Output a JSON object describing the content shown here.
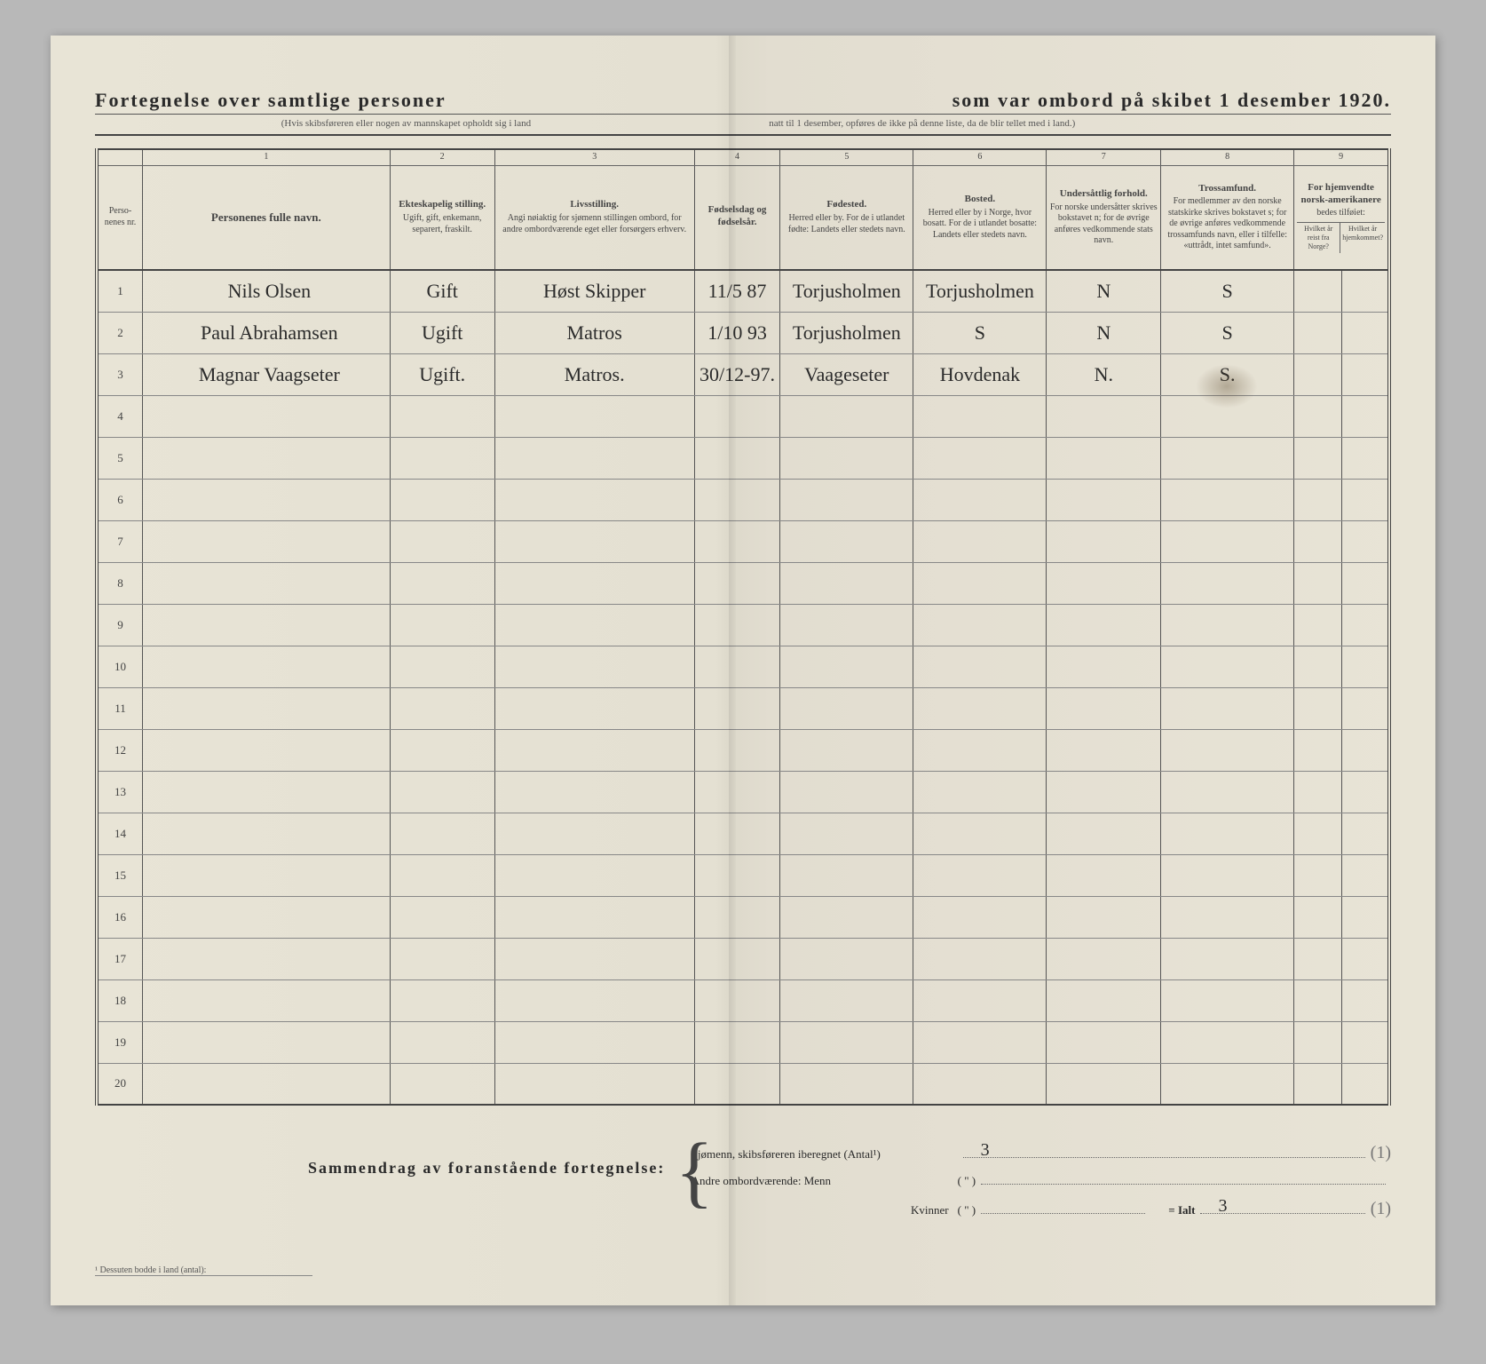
{
  "title": {
    "left": "Fortegnelse over samtlige personer",
    "right": "som var ombord på skibet 1 desember 1920.",
    "sub_left": "(Hvis skibsføreren eller nogen av mannskapet opholdt sig i land",
    "sub_right": "natt til 1 desember, opføres de ikke på denne liste, da de blir tellet med i land.)"
  },
  "col_numbers": [
    "",
    "1",
    "2",
    "3",
    "4",
    "5",
    "6",
    "7",
    "8",
    "9"
  ],
  "headers": {
    "nr": "Perso-\nnenes\nnr.",
    "navn": "Personenes fulle navn.",
    "ekte_b": "Ekteskapelig stilling.",
    "ekte_s": "Ugift, gift, enkemann, separert, fraskilt.",
    "livs_b": "Livsstilling.",
    "livs_s": "Angi nøiaktig for sjømenn stillingen ombord, for andre ombordværende eget eller forsørgers erhverv.",
    "fodselsdag": "Fødselsdag og fødselsår.",
    "fodested_b": "Fødested.",
    "fodested_s": "Herred eller by. For de i utlandet fødte: Landets eller stedets navn.",
    "bosted_b": "Bosted.",
    "bosted_s": "Herred eller by i Norge, hvor bosatt. For de i utlandet bosatte: Landets eller stedets navn.",
    "under_b": "Undersåttlig forhold.",
    "under_s": "For norske undersåtter skrives bokstavet n; for de øvrige anføres vedkommende stats navn.",
    "tros_b": "Trossamfund.",
    "tros_s": "For medlemmer av den norske statskirke skrives bokstavet s; for de øvrige anføres vedkommende trossamfunds navn, eller i tilfelle: «uttrådt, intet samfund».",
    "hjem_b": "For hjemvendte norsk-amerikanere",
    "hjem_s": "bedes tilføiet:",
    "hjem_a": "Hvilket år reist fra Norge?",
    "hjem_b2": "Hvilket år hjemkommet?"
  },
  "rows": [
    {
      "nr": "1",
      "navn": "Nils Olsen",
      "ekte": "Gift",
      "livs": "Høst Skipper",
      "dato": "11/5 87",
      "fodested": "Torjusholmen",
      "bosted": "Torjusholmen",
      "under": "N",
      "tros": "S"
    },
    {
      "nr": "2",
      "navn": "Paul Abrahamsen",
      "ekte": "Ugift",
      "livs": "Matros",
      "dato": "1/10 93",
      "fodested": "Torjusholmen",
      "bosted": "S",
      "under": "N",
      "tros": "S"
    },
    {
      "nr": "3",
      "navn": "Magnar Vaagseter",
      "ekte": "Ugift.",
      "livs": "Matros.",
      "dato": "30/12-97.",
      "fodested": "Vaageseter",
      "bosted": "Hovdenak",
      "under": "N.",
      "tros": "S."
    }
  ],
  "total_rows": 20,
  "summary": {
    "heading": "Sammendrag av foranstående fortegnelse:",
    "line1_label": "Sjømenn, skibsføreren iberegnet (Antal¹)",
    "line1_val": "3",
    "line1_extra": "(1)",
    "line2_label": "Andre ombordværende: Menn",
    "line2_paren": "( \" )",
    "line3_label": "Kvinner",
    "line3_paren": "( \" )",
    "ialt_label": "= Ialt",
    "ialt_val": "3",
    "ialt_extra": "(1)"
  },
  "footnote": "¹ Dessuten bodde i land (antal):",
  "col_widths": {
    "nr": 48,
    "navn": 260,
    "ekte": 110,
    "livs": 210,
    "dato": 90,
    "fodested": 140,
    "bosted": 140,
    "under": 120,
    "tros": 140,
    "hjem_a": 50,
    "hjem_b": 50
  },
  "colors": {
    "paper": "#e6e2d4",
    "ink": "#2a2a2a",
    "rule": "#555555",
    "hand": "#2b2b2b",
    "faint": "#666666"
  }
}
